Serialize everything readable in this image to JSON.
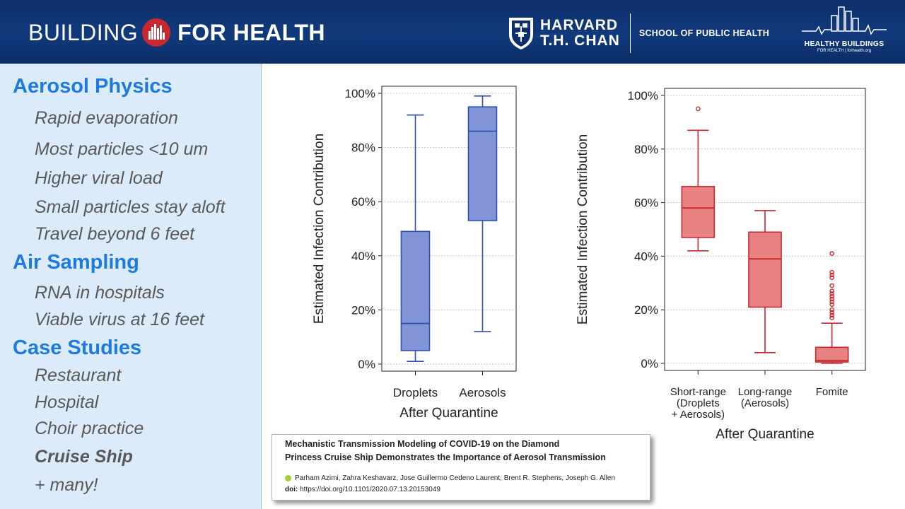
{
  "header": {
    "brand_left": "BUILDING",
    "brand_right": "FOR HEALTH",
    "institution_name_line1": "HARVARD",
    "institution_name_line2": "T.H. CHAN",
    "institution_school": "SCHOOL OF PUBLIC HEALTH",
    "partner_title": "HEALTHY BUILDINGS",
    "partner_sub": "FOR HEALTH | forhealth.org"
  },
  "sidebar": {
    "sections": [
      {
        "title": "Aerosol Physics",
        "items": [
          "Rapid evaporation",
          "Most particles <10 um",
          "Higher viral load",
          "Small particles stay aloft",
          "Travel beyond 6 feet"
        ]
      },
      {
        "title": "Air Sampling",
        "items": [
          "RNA in hospitals",
          "Viable virus at 16 feet"
        ]
      },
      {
        "title": "Case Studies",
        "items": [
          "Restaurant",
          "Hospital",
          "Choir practice",
          "Cruise Ship",
          "+ many!"
        ]
      }
    ]
  },
  "chart_data": [
    {
      "type": "box",
      "ylabel": "Estimated Infection Contribution",
      "xlabel": "After Quarantine",
      "ylim": [
        0,
        100
      ],
      "yticks": [
        "0%",
        "20%",
        "40%",
        "60%",
        "80%",
        "100%"
      ],
      "color": "#8094d6",
      "edge_color": "#2f4fb0",
      "categories": [
        "Droplets",
        "Aerosols"
      ],
      "boxes": [
        {
          "label": "Droplets",
          "min": 1,
          "q1": 5,
          "median": 15,
          "q3": 49,
          "max": 92,
          "outliers": []
        },
        {
          "label": "Aerosols",
          "min": 12,
          "q1": 53,
          "median": 86,
          "q3": 95,
          "max": 99,
          "outliers": []
        }
      ]
    },
    {
      "type": "box",
      "ylabel": "Estimated Infection Contribution",
      "xlabel": "After Quarantine",
      "ylim": [
        0,
        100
      ],
      "yticks": [
        "0%",
        "20%",
        "40%",
        "60%",
        "80%",
        "100%"
      ],
      "color": "#e88181",
      "edge_color": "#c8282e",
      "categories": [
        "Short-range (Droplets + Aerosols)",
        "Long-range (Aerosols)",
        "Fomite"
      ],
      "category_lines": [
        [
          "Short-range",
          "(Droplets",
          "+ Aerosols)"
        ],
        [
          "Long-range",
          "(Aerosols)"
        ],
        [
          "Fomite"
        ]
      ],
      "boxes": [
        {
          "label": "Short-range (Droplets + Aerosols)",
          "min": 42,
          "q1": 47,
          "median": 58,
          "q3": 66,
          "max": 87,
          "outliers": [
            95
          ]
        },
        {
          "label": "Long-range (Aerosols)",
          "min": 4,
          "q1": 21,
          "median": 39,
          "q3": 49,
          "max": 57,
          "outliers": []
        },
        {
          "label": "Fomite",
          "min": 0,
          "q1": 0.5,
          "median": 1,
          "q3": 6,
          "max": 15,
          "outliers": [
            17,
            18,
            19,
            20,
            22,
            23,
            24,
            25,
            26,
            27,
            29,
            32,
            33,
            34,
            41
          ]
        }
      ]
    }
  ],
  "citation": {
    "title_line1": "Mechanistic Transmission Modeling of COVID-19 on the Diamond",
    "title_line2": "Princess Cruise Ship Demonstrates the Importance of Aerosol Transmission",
    "authors": "Parham Azimi, Zahra Keshavarz, Jose Guillermo Cedeno Laurent, Brent R. Stephens, Joseph G. Allen",
    "doi_label": "doi:",
    "doi": "https://doi.org/10.1101/2020.07.13.20153049"
  }
}
